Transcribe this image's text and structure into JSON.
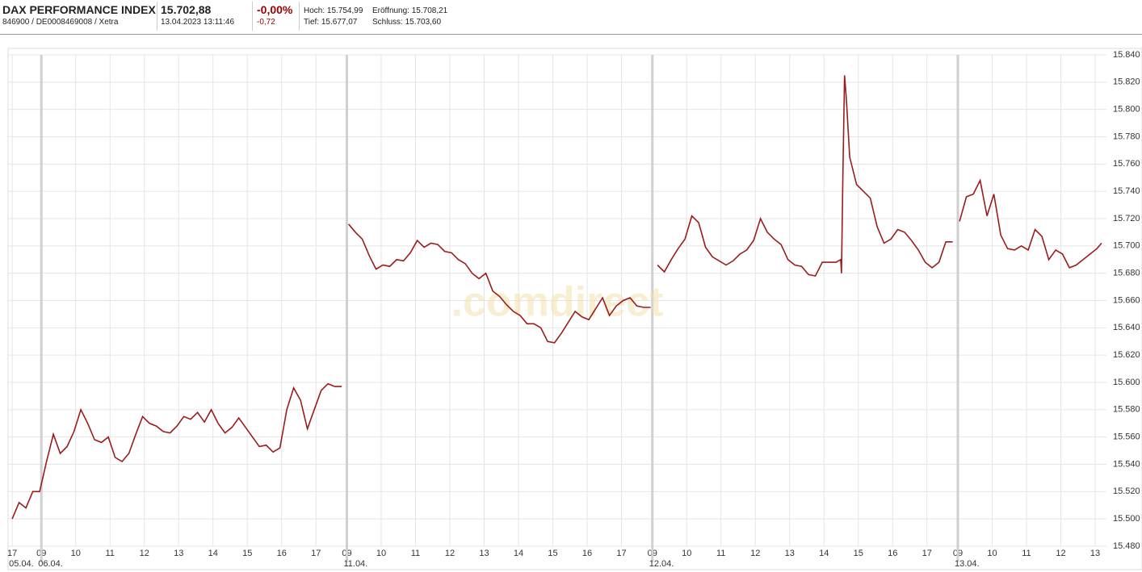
{
  "header": {
    "title": "DAX PERFORMANCE INDEX",
    "identifier": "846900 / DE0008469008 / Xetra",
    "price": "15.702,88",
    "timestamp": "13.04.2023 13:11:46",
    "change_percent": "-0,00%",
    "change_absolute": "-0,72",
    "high": "Hoch: 15.754,99",
    "open": "Eröffnung: 15.708,21",
    "low": "Tief: 15.677,07",
    "close": "Schluss: 15.703,60"
  },
  "chart_data": {
    "type": "line",
    "watermark": ".comdirect",
    "grid": true,
    "xlim": [
      -0.12,
      31.88
    ],
    "ylim": [
      15480,
      15840
    ],
    "yticks": [
      {
        "value": 15480,
        "label": "15.480"
      },
      {
        "value": 15500,
        "label": "15.500"
      },
      {
        "value": 15520,
        "label": "15.520"
      },
      {
        "value": 15540,
        "label": "15.540"
      },
      {
        "value": 15560,
        "label": "15.560"
      },
      {
        "value": 15580,
        "label": "15.580"
      },
      {
        "value": 15600,
        "label": "15.600"
      },
      {
        "value": 15620,
        "label": "15.620"
      },
      {
        "value": 15640,
        "label": "15.640"
      },
      {
        "value": 15660,
        "label": "15.660"
      },
      {
        "value": 15680,
        "label": "15.680"
      },
      {
        "value": 15700,
        "label": "15.700"
      },
      {
        "value": 15720,
        "label": "15.720"
      },
      {
        "value": 15740,
        "label": "15.740"
      },
      {
        "value": 15760,
        "label": "15.760"
      },
      {
        "value": 15780,
        "label": "15.780"
      },
      {
        "value": 15800,
        "label": "15.800"
      },
      {
        "value": 15820,
        "label": "15.820"
      },
      {
        "value": 15840,
        "label": "15.840"
      }
    ],
    "xticks": [
      {
        "value": 0,
        "label": "17"
      },
      {
        "value": 0.85,
        "label": "09"
      },
      {
        "value": 1.85,
        "label": "10"
      },
      {
        "value": 2.85,
        "label": "11"
      },
      {
        "value": 3.85,
        "label": "12"
      },
      {
        "value": 4.85,
        "label": "13"
      },
      {
        "value": 5.85,
        "label": "14"
      },
      {
        "value": 6.85,
        "label": "15"
      },
      {
        "value": 7.85,
        "label": "16"
      },
      {
        "value": 8.85,
        "label": "17"
      },
      {
        "value": 9.75,
        "label": "09"
      },
      {
        "value": 10.75,
        "label": "10"
      },
      {
        "value": 11.75,
        "label": "11"
      },
      {
        "value": 12.75,
        "label": "12"
      },
      {
        "value": 13.75,
        "label": "13"
      },
      {
        "value": 14.75,
        "label": "14"
      },
      {
        "value": 15.75,
        "label": "15"
      },
      {
        "value": 16.75,
        "label": "16"
      },
      {
        "value": 17.75,
        "label": "17"
      },
      {
        "value": 18.65,
        "label": "09"
      },
      {
        "value": 19.65,
        "label": "10"
      },
      {
        "value": 20.65,
        "label": "11"
      },
      {
        "value": 21.65,
        "label": "12"
      },
      {
        "value": 22.65,
        "label": "13"
      },
      {
        "value": 23.65,
        "label": "14"
      },
      {
        "value": 24.65,
        "label": "15"
      },
      {
        "value": 25.65,
        "label": "16"
      },
      {
        "value": 26.65,
        "label": "17"
      },
      {
        "value": 27.55,
        "label": "09"
      },
      {
        "value": 28.55,
        "label": "10"
      },
      {
        "value": 29.55,
        "label": "11"
      },
      {
        "value": 30.55,
        "label": "12"
      },
      {
        "value": 31.55,
        "label": "13"
      }
    ],
    "date_labels": [
      {
        "value": 0,
        "label": "05.04."
      },
      {
        "value": 0.85,
        "label": "06.04."
      },
      {
        "value": 9.75,
        "label": "11.04."
      },
      {
        "value": 18.65,
        "label": "12.04."
      },
      {
        "value": 27.55,
        "label": "13.04."
      }
    ],
    "series": [
      {
        "color": "#9b1c1c",
        "x": [
          0,
          0.2,
          0.4,
          0.6,
          0.8,
          1,
          1.2,
          1.4,
          1.6,
          1.8,
          2,
          2.2,
          2.4,
          2.6,
          2.8,
          3,
          3.2,
          3.4,
          3.6,
          3.8,
          4,
          4.2,
          4.4,
          4.6,
          4.8,
          5,
          5.2,
          5.4,
          5.6,
          5.8,
          6,
          6.2,
          6.4,
          6.6,
          6.8,
          7,
          7.2,
          7.4,
          7.6,
          7.8,
          8,
          8.2,
          8.4,
          8.6,
          8.8,
          9,
          9.2,
          9.4,
          9.6,
          9.72,
          9.8,
          10,
          10.2,
          10.4,
          10.6,
          10.8,
          11,
          11.2,
          11.4,
          11.6,
          11.8,
          12,
          12.2,
          12.4,
          12.6,
          12.8,
          13,
          13.2,
          13.4,
          13.6,
          13.8,
          14,
          14.2,
          14.4,
          14.6,
          14.8,
          15,
          15.2,
          15.4,
          15.6,
          15.8,
          16,
          16.2,
          16.4,
          16.6,
          16.8,
          17,
          17.2,
          17.4,
          17.6,
          17.8,
          18,
          18.2,
          18.4,
          18.6,
          18.7,
          18.8,
          19,
          19.2,
          19.4,
          19.6,
          19.8,
          20,
          20.2,
          20.4,
          20.6,
          20.8,
          21,
          21.2,
          21.4,
          21.6,
          21.8,
          22,
          22.2,
          22.4,
          22.6,
          22.8,
          23,
          23.2,
          23.4,
          23.6,
          23.8,
          24,
          24.14,
          24.16,
          24.2,
          24.25,
          24.3,
          24.4,
          24.6,
          24.8,
          25,
          25.2,
          25.4,
          25.6,
          25.8,
          26,
          26.2,
          26.4,
          26.6,
          26.8,
          27,
          27.2,
          27.4,
          27.5,
          27.6,
          27.8,
          28,
          28.2,
          28.4,
          28.6,
          28.8,
          29,
          29.2,
          29.4,
          29.6,
          29.8,
          30,
          30.2,
          30.4,
          30.6,
          30.8,
          31,
          31.2,
          31.4,
          31.6,
          31.74
        ],
        "values": [
          15500,
          15512,
          15508,
          15520,
          15520,
          15542,
          15562,
          15548,
          15553,
          15564,
          15580,
          15570,
          15558,
          15556,
          15560,
          15545,
          15542,
          15548,
          15562,
          15575,
          15570,
          15568,
          15564,
          15563,
          15568,
          15575,
          15573,
          15578,
          15571,
          15580,
          15570,
          15563,
          15567,
          15574,
          15567,
          15560,
          15553,
          15554,
          15549,
          15552,
          15580,
          15596,
          15587,
          15566,
          15580,
          15594,
          15599,
          15597,
          15597,
          null,
          15716,
          15710,
          15705,
          15693,
          15683,
          15686,
          15685,
          15690,
          15689,
          15695,
          15704,
          15699,
          15702,
          15701,
          15696,
          15695,
          15690,
          15687,
          15680,
          15676,
          15680,
          15667,
          15663,
          15657,
          15652,
          15649,
          15643,
          15643,
          15640,
          15630,
          15629,
          15636,
          15644,
          15652,
          15648,
          15646,
          15654,
          15662,
          15649,
          15656,
          15660,
          15662,
          15656,
          15655,
          15655,
          null,
          15686,
          15681,
          15690,
          15698,
          15705,
          15722,
          15717,
          15699,
          15692,
          15689,
          15686,
          15689,
          15694,
          15697,
          15704,
          15720,
          15710,
          15705,
          15701,
          15690,
          15686,
          15685,
          15679,
          15678,
          15688,
          15688,
          15688,
          15690,
          15680,
          15750,
          15825,
          15808,
          15765,
          15745,
          15740,
          15735,
          15714,
          15702,
          15705,
          15712,
          15710,
          15704,
          15697,
          15688,
          15684,
          15688,
          15703,
          15703,
          null,
          15718,
          15736,
          15738,
          15748,
          15722,
          15738,
          15708,
          15698,
          15697,
          15700,
          15697,
          15712,
          15707,
          15690,
          15697,
          15694,
          15684,
          15686,
          15690,
          15694,
          15698,
          15702
        ]
      }
    ]
  }
}
